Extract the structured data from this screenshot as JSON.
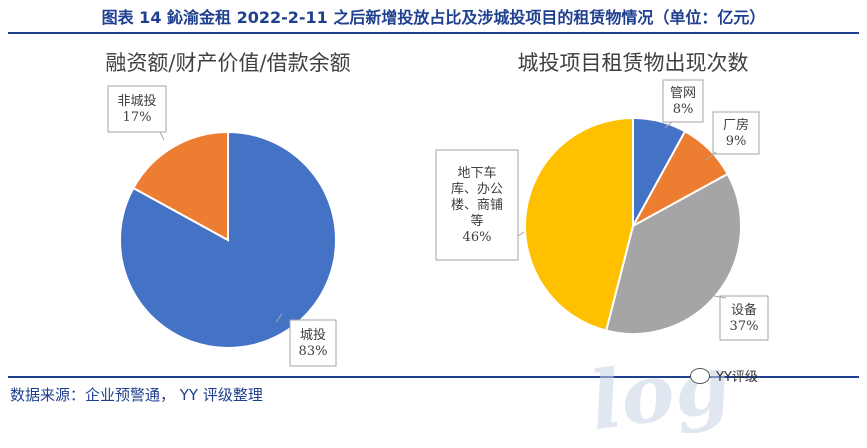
{
  "figure_title": "图表 14 鈊渝金租 2022-2-11 之后新增投放占比及涉城投项目的租赁物情况（单位：亿元）",
  "source": "数据来源：企业预警通， YY 评级整理",
  "watermark_text": "YY评级",
  "watermark_bg": "log",
  "chart_data": [
    {
      "type": "pie",
      "title": "融资额/财产价值/借款余额",
      "slices": [
        {
          "label": "城投",
          "value": 83,
          "display": "83%",
          "color": "#4472c4",
          "label_lines": [
            "城投",
            "83%"
          ]
        },
        {
          "label": "非城投",
          "value": 17,
          "display": "17%",
          "color": "#ed7d31",
          "label_lines": [
            "非城投",
            "17%"
          ]
        }
      ]
    },
    {
      "type": "pie",
      "title": "城投项目租赁物出现次数",
      "slices": [
        {
          "label": "管网",
          "value": 8,
          "display": "8%",
          "color": "#4472c4",
          "label_lines": [
            "管网",
            "8%"
          ]
        },
        {
          "label": "厂房",
          "value": 9,
          "display": "9%",
          "color": "#ed7d31",
          "label_lines": [
            "厂房",
            "9%"
          ]
        },
        {
          "label": "设备",
          "value": 37,
          "display": "37%",
          "color": "#a5a5a5",
          "label_lines": [
            "设备",
            "37%"
          ]
        },
        {
          "label": "地下车库、办公楼、商铺等",
          "value": 46,
          "display": "46%",
          "color": "#ffc000",
          "label_lines": [
            "地下车",
            "库、办公",
            "楼、商铺",
            "等",
            "46%"
          ]
        }
      ]
    }
  ]
}
